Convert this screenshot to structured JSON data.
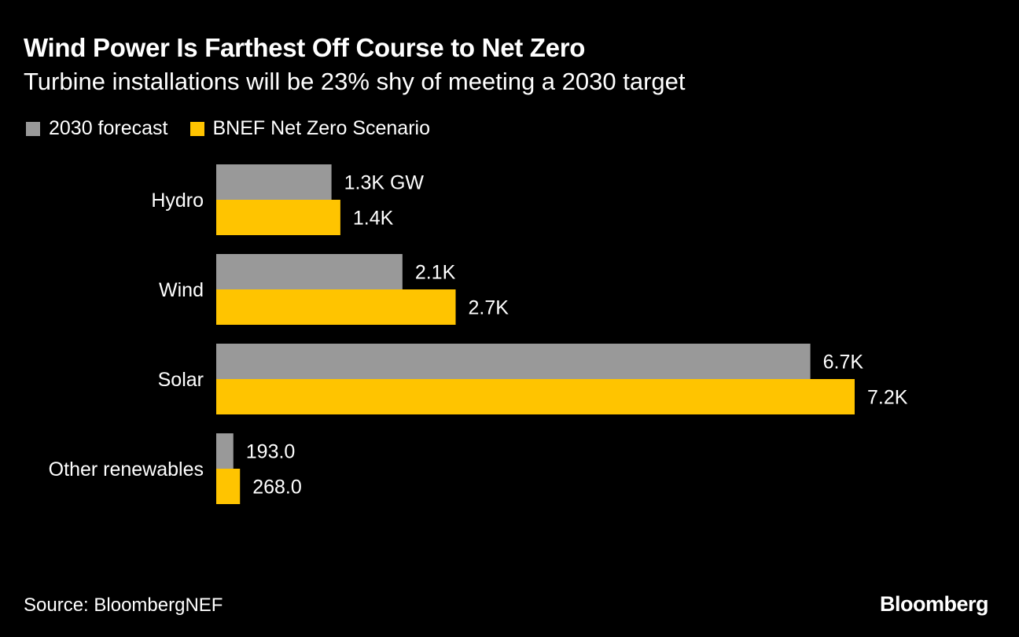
{
  "header": {
    "title": "Wind Power Is Farthest Off Course to Net Zero",
    "subtitle": "Turbine installations will be 23% shy of meeting a 2030 target"
  },
  "legend": {
    "items": [
      {
        "label": "2030 forecast",
        "color": "#999999"
      },
      {
        "label": "BNEF Net Zero Scenario",
        "color": "#FFC400"
      }
    ]
  },
  "footer": {
    "source": "Source: BloombergNEF",
    "brand": "Bloomberg"
  },
  "chart_data": {
    "type": "bar",
    "orientation": "horizontal",
    "unit": "GW",
    "categories": [
      "Hydro",
      "Wind",
      "Solar",
      "Other renewables"
    ],
    "series": [
      {
        "name": "2030 forecast",
        "color": "#999999",
        "values": [
          1300,
          2100,
          6700,
          193
        ],
        "labels": [
          "1.3K GW",
          "2.1K",
          "6.7K",
          "193.0"
        ]
      },
      {
        "name": "BNEF Net Zero Scenario",
        "color": "#FFC400",
        "values": [
          1400,
          2700,
          7200,
          268
        ],
        "labels": [
          "1.4K",
          "2.7K",
          "7.2K",
          "268.0"
        ]
      }
    ],
    "xlim": [
      0,
      7200
    ],
    "grid": false,
    "legend_position": "top-left"
  }
}
